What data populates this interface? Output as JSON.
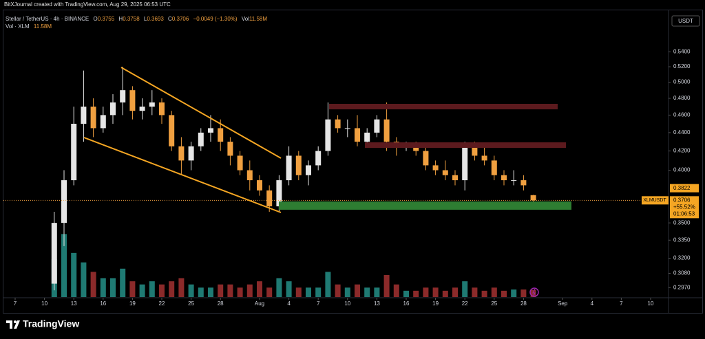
{
  "watermark": "BitXJournal created with TradingView.com, Aug 29, 2025 06:53 UTC",
  "footer": {
    "brand": "TradingView"
  },
  "chart_data": {
    "type": "candlestick",
    "title": "Stellar / TetherUS · 4h · BINANCE",
    "ohlc_legend": [
      {
        "label": "O",
        "value": "0.3755"
      },
      {
        "label": "H",
        "value": "0.3758"
      },
      {
        "label": "L",
        "value": "0.3693"
      },
      {
        "label": "C",
        "value": "0.3706"
      },
      {
        "label": "",
        "value": "−0.0049 (−1.30%)"
      },
      {
        "label": "Vol",
        "value": "11.58M"
      }
    ],
    "volume_legend": {
      "label": "Vol · XLM",
      "value": "11.58M"
    },
    "currency": "USDT",
    "symbol": "XLMUSDT",
    "change": "+55.52%",
    "countdown": "01:06:53",
    "marker_price": {
      "value": 0.3822,
      "label": "0.3822"
    },
    "log_scale": true,
    "up_color": "#e6e6e6",
    "down_color": "#f0a040",
    "volume_up_color": "#1f7a73",
    "volume_down_color": "#8b2a2a",
    "x": [
      "2025-07-11",
      "2025-07-12",
      "2025-07-13",
      "2025-07-14",
      "2025-07-15",
      "2025-07-16",
      "2025-07-17",
      "2025-07-18",
      "2025-07-19",
      "2025-07-20",
      "2025-07-21",
      "2025-07-22",
      "2025-07-23",
      "2025-07-24",
      "2025-07-25",
      "2025-07-26",
      "2025-07-27",
      "2025-07-28",
      "2025-07-29",
      "2025-07-30",
      "2025-07-31",
      "2025-08-01",
      "2025-08-02",
      "2025-08-03",
      "2025-08-04",
      "2025-08-05",
      "2025-08-06",
      "2025-08-07",
      "2025-08-08",
      "2025-08-09",
      "2025-08-10",
      "2025-08-11",
      "2025-08-12",
      "2025-08-13",
      "2025-08-14",
      "2025-08-15",
      "2025-08-16",
      "2025-08-17",
      "2025-08-18",
      "2025-08-19",
      "2025-08-20",
      "2025-08-21",
      "2025-08-22",
      "2025-08-23",
      "2025-08-24",
      "2025-08-25",
      "2025-08-26",
      "2025-08-27",
      "2025-08-28",
      "2025-08-29"
    ],
    "open": [
      0.3,
      0.35,
      0.39,
      0.45,
      0.47,
      0.445,
      0.46,
      0.475,
      0.49,
      0.465,
      0.47,
      0.475,
      0.46,
      0.425,
      0.41,
      0.425,
      0.44,
      0.445,
      0.43,
      0.415,
      0.4,
      0.39,
      0.38,
      0.365,
      0.39,
      0.415,
      0.395,
      0.405,
      0.42,
      0.455,
      0.445,
      0.445,
      0.43,
      0.44,
      0.455,
      0.43,
      0.425,
      0.425,
      0.42,
      0.405,
      0.4,
      0.395,
      0.39,
      0.425,
      0.415,
      0.41,
      0.395,
      0.39,
      0.39,
      0.3755
    ],
    "high": [
      0.36,
      0.4,
      0.47,
      0.515,
      0.48,
      0.47,
      0.485,
      0.52,
      0.495,
      0.48,
      0.49,
      0.48,
      0.465,
      0.435,
      0.43,
      0.445,
      0.46,
      0.455,
      0.435,
      0.42,
      0.41,
      0.395,
      0.385,
      0.395,
      0.425,
      0.42,
      0.41,
      0.425,
      0.475,
      0.46,
      0.455,
      0.46,
      0.445,
      0.46,
      0.475,
      0.435,
      0.43,
      0.43,
      0.425,
      0.41,
      0.41,
      0.4,
      0.43,
      0.43,
      0.425,
      0.415,
      0.4,
      0.4,
      0.395,
      0.3758
    ],
    "low": [
      0.295,
      0.33,
      0.385,
      0.43,
      0.435,
      0.44,
      0.45,
      0.46,
      0.455,
      0.455,
      0.46,
      0.45,
      0.42,
      0.395,
      0.4,
      0.42,
      0.43,
      0.42,
      0.405,
      0.395,
      0.38,
      0.375,
      0.36,
      0.36,
      0.385,
      0.39,
      0.385,
      0.4,
      0.415,
      0.44,
      0.435,
      0.425,
      0.425,
      0.435,
      0.42,
      0.415,
      0.42,
      0.415,
      0.4,
      0.395,
      0.39,
      0.385,
      0.38,
      0.41,
      0.405,
      0.39,
      0.385,
      0.385,
      0.38,
      0.3693
    ],
    "close": [
      0.35,
      0.39,
      0.45,
      0.47,
      0.445,
      0.46,
      0.475,
      0.49,
      0.465,
      0.47,
      0.475,
      0.46,
      0.425,
      0.41,
      0.425,
      0.44,
      0.445,
      0.43,
      0.415,
      0.4,
      0.39,
      0.38,
      0.365,
      0.39,
      0.415,
      0.395,
      0.405,
      0.42,
      0.455,
      0.445,
      0.445,
      0.43,
      0.44,
      0.455,
      0.43,
      0.425,
      0.425,
      0.42,
      0.405,
      0.4,
      0.395,
      0.39,
      0.425,
      0.415,
      0.41,
      0.395,
      0.39,
      0.39,
      0.385,
      0.3706
    ],
    "volume": [
      60,
      100,
      70,
      55,
      40,
      30,
      30,
      45,
      25,
      20,
      25,
      20,
      25,
      30,
      20,
      15,
      15,
      20,
      20,
      15,
      20,
      25,
      15,
      30,
      25,
      15,
      15,
      15,
      40,
      20,
      15,
      20,
      15,
      15,
      35,
      20,
      10,
      10,
      15,
      15,
      10,
      15,
      25,
      15,
      10,
      15,
      10,
      12,
      12,
      11.58
    ],
    "volume_lim": [
      0,
      120
    ],
    "ylim": [
      0.29,
      0.6
    ],
    "yticks": [
      {
        "value": 0.54,
        "label": "0.5400"
      },
      {
        "value": 0.52,
        "label": "0.5200"
      },
      {
        "value": 0.5,
        "label": "0.5000"
      },
      {
        "value": 0.48,
        "label": "0.4800"
      },
      {
        "value": 0.46,
        "label": "0.4600"
      },
      {
        "value": 0.44,
        "label": "0.4400"
      },
      {
        "value": 0.42,
        "label": "0.4200"
      },
      {
        "value": 0.4,
        "label": "0.4000"
      },
      {
        "value": 0.35,
        "label": "0.3500"
      },
      {
        "value": 0.335,
        "label": "0.3350"
      },
      {
        "value": 0.32,
        "label": "0.3200"
      },
      {
        "value": 0.308,
        "label": "0.3080"
      },
      {
        "value": 0.297,
        "label": "0.2970"
      }
    ],
    "xticks": [
      {
        "value": "2025-07-07",
        "label": "7"
      },
      {
        "value": "2025-07-10",
        "label": "10"
      },
      {
        "value": "2025-07-13",
        "label": "13"
      },
      {
        "value": "2025-07-16",
        "label": "16"
      },
      {
        "value": "2025-07-19",
        "label": "19"
      },
      {
        "value": "2025-07-22",
        "label": "22"
      },
      {
        "value": "2025-07-25",
        "label": "25"
      },
      {
        "value": "2025-07-28",
        "label": "28"
      },
      {
        "value": "2025-08-01",
        "label": "Aug"
      },
      {
        "value": "2025-08-04",
        "label": "4"
      },
      {
        "value": "2025-08-07",
        "label": "7"
      },
      {
        "value": "2025-08-10",
        "label": "10"
      },
      {
        "value": "2025-08-13",
        "label": "13"
      },
      {
        "value": "2025-08-16",
        "label": "16"
      },
      {
        "value": "2025-08-19",
        "label": "19"
      },
      {
        "value": "2025-08-22",
        "label": "22"
      },
      {
        "value": "2025-08-25",
        "label": "25"
      },
      {
        "value": "2025-08-28",
        "label": "28"
      },
      {
        "value": "2025-09-01",
        "label": "Sep"
      },
      {
        "value": "2025-09-04",
        "label": "4"
      },
      {
        "value": "2025-09-07",
        "label": "7"
      },
      {
        "value": "2025-09-10",
        "label": "10"
      }
    ]
  }
}
